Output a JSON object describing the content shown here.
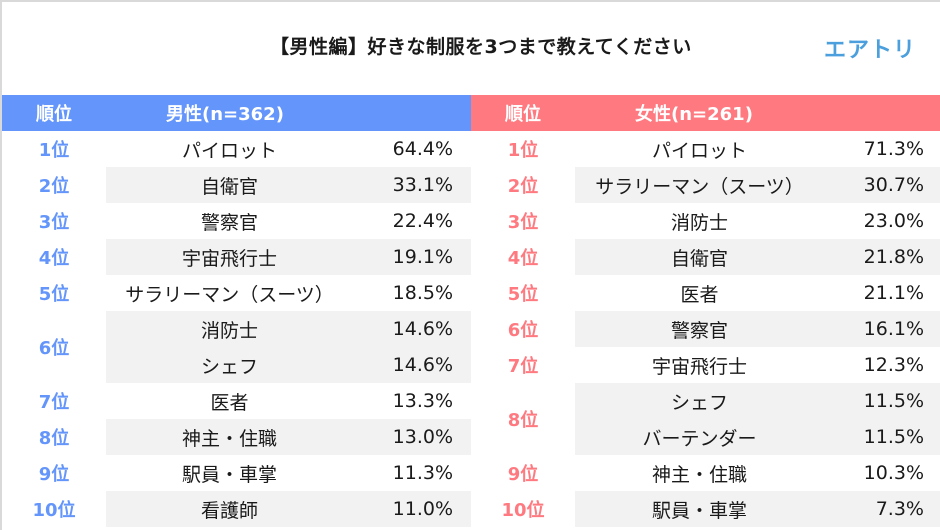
{
  "title": "【男性編】好きな制服を3つまで教えてください",
  "logo": "エアトリ",
  "colors": {
    "male_accent": "#6495fa",
    "female_accent": "#fe7a80",
    "logo": "#4a9fdc",
    "stripe": "#f2f2f2"
  },
  "male": {
    "header_rank": "順位",
    "header_group": "男性(n=362)",
    "rows": [
      {
        "rank": "1位",
        "job": "パイロット",
        "pct": "64.4%"
      },
      {
        "rank": "2位",
        "job": "自衛官",
        "pct": "33.1%"
      },
      {
        "rank": "3位",
        "job": "警察官",
        "pct": "22.4%"
      },
      {
        "rank": "4位",
        "job": "宇宙飛行士",
        "pct": "19.1%"
      },
      {
        "rank": "5位",
        "job": "サラリーマン（スーツ）",
        "pct": "18.5%"
      },
      {
        "rank": "6位",
        "jobs": [
          {
            "job": "消防士",
            "pct": "14.6%"
          },
          {
            "job": "シェフ",
            "pct": "14.6%"
          }
        ]
      },
      {
        "rank": "7位",
        "job": "医者",
        "pct": "13.3%"
      },
      {
        "rank": "8位",
        "job": "神主・住職",
        "pct": "13.0%"
      },
      {
        "rank": "9位",
        "job": "駅員・車掌",
        "pct": "11.3%"
      },
      {
        "rank": "10位",
        "job": "看護師",
        "pct": "11.0%"
      }
    ]
  },
  "female": {
    "header_rank": "順位",
    "header_group": "女性(n=261)",
    "rows": [
      {
        "rank": "1位",
        "job": "パイロット",
        "pct": "71.3%"
      },
      {
        "rank": "2位",
        "job": "サラリーマン（スーツ）",
        "pct": "30.7%"
      },
      {
        "rank": "3位",
        "job": "消防士",
        "pct": "23.0%"
      },
      {
        "rank": "4位",
        "job": "自衛官",
        "pct": "21.8%"
      },
      {
        "rank": "5位",
        "job": "医者",
        "pct": "21.1%"
      },
      {
        "rank": "6位",
        "job": "警察官",
        "pct": "16.1%"
      },
      {
        "rank": "7位",
        "job": "宇宙飛行士",
        "pct": "12.3%"
      },
      {
        "rank": "8位",
        "jobs": [
          {
            "job": "シェフ",
            "pct": "11.5%"
          },
          {
            "job": "バーテンダー",
            "pct": "11.5%"
          }
        ]
      },
      {
        "rank": "9位",
        "job": "神主・住職",
        "pct": "10.3%"
      },
      {
        "rank": "10位",
        "job": "駅員・車掌",
        "pct": "7.3%"
      }
    ]
  }
}
